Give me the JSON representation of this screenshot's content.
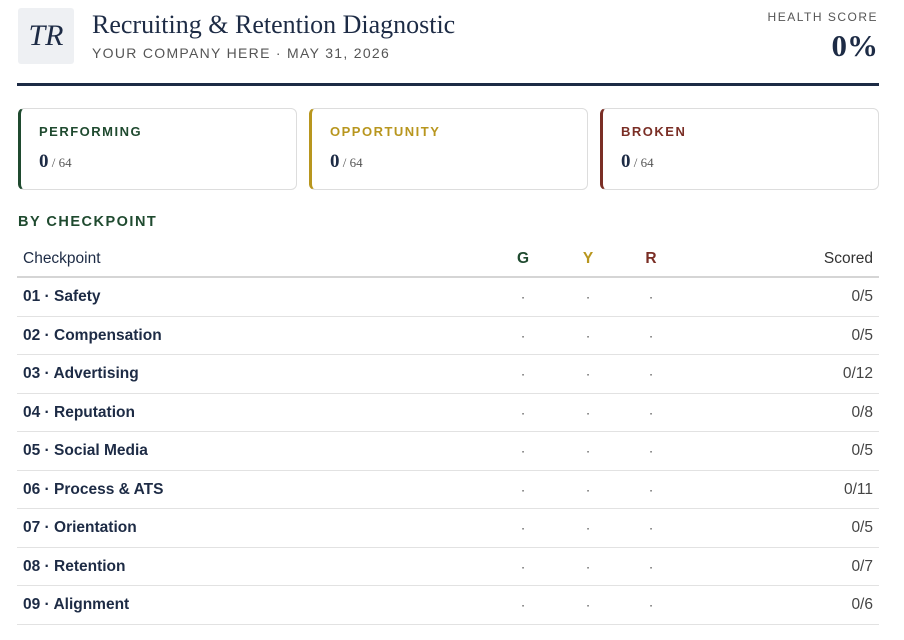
{
  "header": {
    "logo": "TR",
    "title": "Recruiting & Retention Diagnostic",
    "subtitle": "YOUR COMPANY HERE · MAY 31, 2026",
    "score_label": "HEALTH SCORE",
    "score": "0%"
  },
  "cards": [
    {
      "label": "PERFORMING",
      "value": "0",
      "total": "/ 64",
      "color": "#1f4a2f"
    },
    {
      "label": "OPPORTUNITY",
      "value": "0",
      "total": "/ 64",
      "color": "#b8961e"
    },
    {
      "label": "BROKEN",
      "value": "0",
      "total": "/ 64",
      "color": "#7a2e25"
    }
  ],
  "section": "BY CHECKPOINT",
  "table": {
    "columns": [
      "Checkpoint",
      "G",
      "Y",
      "R",
      "Scored"
    ],
    "rows": [
      [
        "01 · Safety",
        "·",
        "·",
        "·",
        "0/5"
      ],
      [
        "02 · Compensation",
        "·",
        "·",
        "·",
        "0/5"
      ],
      [
        "03 · Advertising",
        "·",
        "·",
        "·",
        "0/12"
      ],
      [
        "04 · Reputation",
        "·",
        "·",
        "·",
        "0/8"
      ],
      [
        "05 · Social Media",
        "·",
        "·",
        "·",
        "0/5"
      ],
      [
        "06 · Process & ATS",
        "·",
        "·",
        "·",
        "0/11"
      ],
      [
        "07 · Orientation",
        "·",
        "·",
        "·",
        "0/5"
      ],
      [
        "08 · Retention",
        "·",
        "·",
        "·",
        "0/7"
      ],
      [
        "09 · Alignment",
        "·",
        "·",
        "·",
        "0/6"
      ]
    ]
  }
}
